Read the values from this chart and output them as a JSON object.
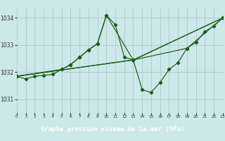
{
  "title": "Graphe pression niveau de la mer (hPa)",
  "background_color": "#cce8e8",
  "label_bg_color": "#2d6e2d",
  "label_text_color": "#ffffff",
  "grid_color": "#aacccc",
  "line_color": "#1a5c1a",
  "xlim": [
    0,
    23
  ],
  "ylim": [
    1030.5,
    1034.35
  ],
  "yticks": [
    1031,
    1032,
    1033,
    1034
  ],
  "xticks": [
    0,
    1,
    2,
    3,
    4,
    5,
    6,
    7,
    8,
    9,
    10,
    11,
    12,
    13,
    14,
    15,
    16,
    17,
    18,
    19,
    20,
    21,
    22,
    23
  ],
  "series1": [
    [
      0,
      1031.85
    ],
    [
      1,
      1031.75
    ],
    [
      2,
      1031.85
    ],
    [
      3,
      1031.88
    ],
    [
      4,
      1031.92
    ],
    [
      5,
      1032.1
    ],
    [
      6,
      1032.28
    ],
    [
      7,
      1032.55
    ],
    [
      8,
      1032.82
    ],
    [
      9,
      1033.05
    ],
    [
      10,
      1034.1
    ],
    [
      11,
      1033.75
    ],
    [
      12,
      1032.55
    ],
    [
      13,
      1032.45
    ],
    [
      14,
      1031.35
    ],
    [
      15,
      1031.25
    ],
    [
      16,
      1031.62
    ],
    [
      17,
      1032.1
    ],
    [
      18,
      1032.35
    ],
    [
      19,
      1032.88
    ],
    [
      20,
      1033.1
    ],
    [
      21,
      1033.5
    ],
    [
      22,
      1033.7
    ],
    [
      23,
      1034.0
    ]
  ],
  "series2": [
    [
      0,
      1031.85
    ],
    [
      5,
      1032.1
    ],
    [
      6,
      1032.28
    ],
    [
      7,
      1032.55
    ],
    [
      8,
      1032.82
    ],
    [
      9,
      1033.05
    ],
    [
      10,
      1034.1
    ],
    [
      13,
      1032.45
    ],
    [
      23,
      1034.0
    ]
  ],
  "series3": [
    [
      0,
      1031.85
    ],
    [
      13,
      1032.45
    ],
    [
      23,
      1034.0
    ]
  ],
  "series4": [
    [
      0,
      1031.85
    ],
    [
      13,
      1032.45
    ],
    [
      19,
      1032.88
    ],
    [
      23,
      1034.0
    ]
  ]
}
